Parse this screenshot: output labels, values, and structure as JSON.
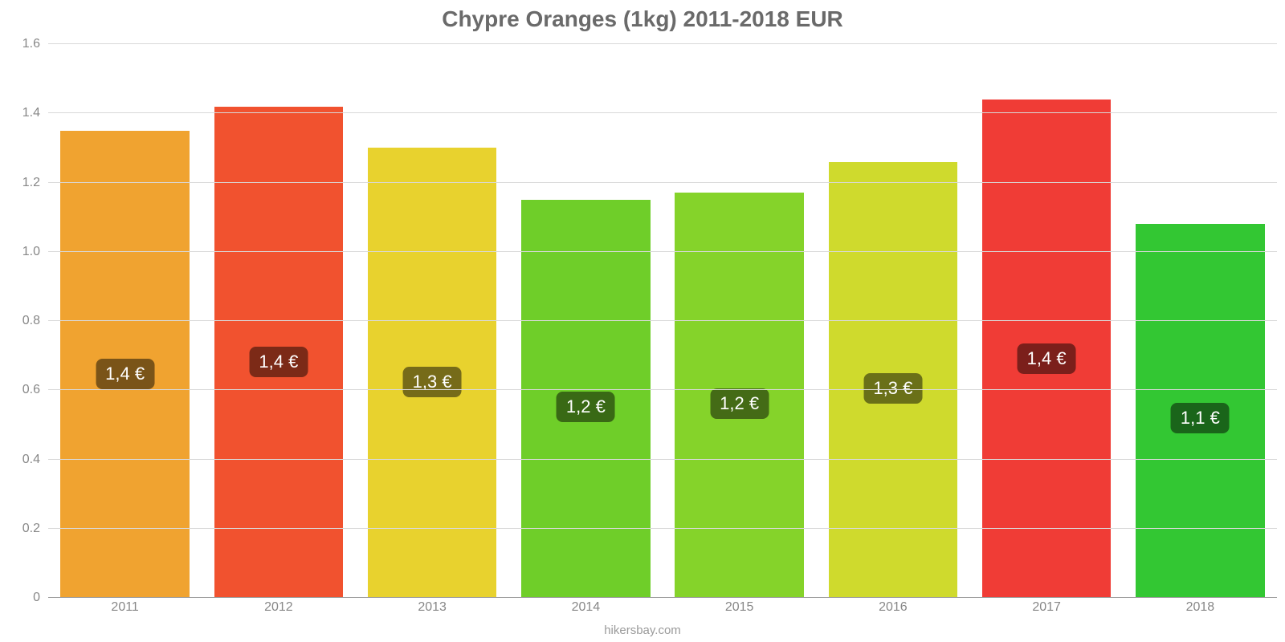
{
  "chart": {
    "type": "bar",
    "title": "Chypre Oranges (1kg) 2011-2018 EUR",
    "title_fontsize": 28,
    "title_color": "#6a6a6a",
    "attribution": "hikersbay.com",
    "background_color": "#ffffff",
    "grid_color": "#d9d9d9",
    "axis_color": "#9c9c9c",
    "tick_font_color": "#878787",
    "tick_fontsize": 16,
    "y": {
      "min": 0,
      "max": 1.6,
      "step": 0.2,
      "ticks": [
        "0",
        "0.2",
        "0.4",
        "0.6",
        "0.8",
        "1.0",
        "1.2",
        "1.4",
        "1.6"
      ]
    },
    "bar_width_ratio": 0.84,
    "badge_fontsize": 22,
    "badge_text_color": "#ffffff",
    "badge_y_offset_ratio": 0.48,
    "categories": [
      "2011",
      "2012",
      "2013",
      "2014",
      "2015",
      "2016",
      "2017",
      "2018"
    ],
    "bars": [
      {
        "value": 1.35,
        "label": "1,4 €",
        "color": "#f0a330",
        "badge_bg": "#7a5418"
      },
      {
        "value": 1.42,
        "label": "1,4 €",
        "color": "#f1522f",
        "badge_bg": "#7c2a17"
      },
      {
        "value": 1.3,
        "label": "1,3 €",
        "color": "#e8d22e",
        "badge_bg": "#766b19"
      },
      {
        "value": 1.15,
        "label": "1,2 €",
        "color": "#6fce29",
        "badge_bg": "#396915"
      },
      {
        "value": 1.17,
        "label": "1,2 €",
        "color": "#85d32a",
        "badge_bg": "#446b16"
      },
      {
        "value": 1.26,
        "label": "1,3 €",
        "color": "#cfda2d",
        "badge_bg": "#6a7018"
      },
      {
        "value": 1.44,
        "label": "1,4 €",
        "color": "#f03c36",
        "badge_bg": "#7b1f1b"
      },
      {
        "value": 1.08,
        "label": "1,1 €",
        "color": "#33c733",
        "badge_bg": "#1a651a"
      }
    ]
  }
}
